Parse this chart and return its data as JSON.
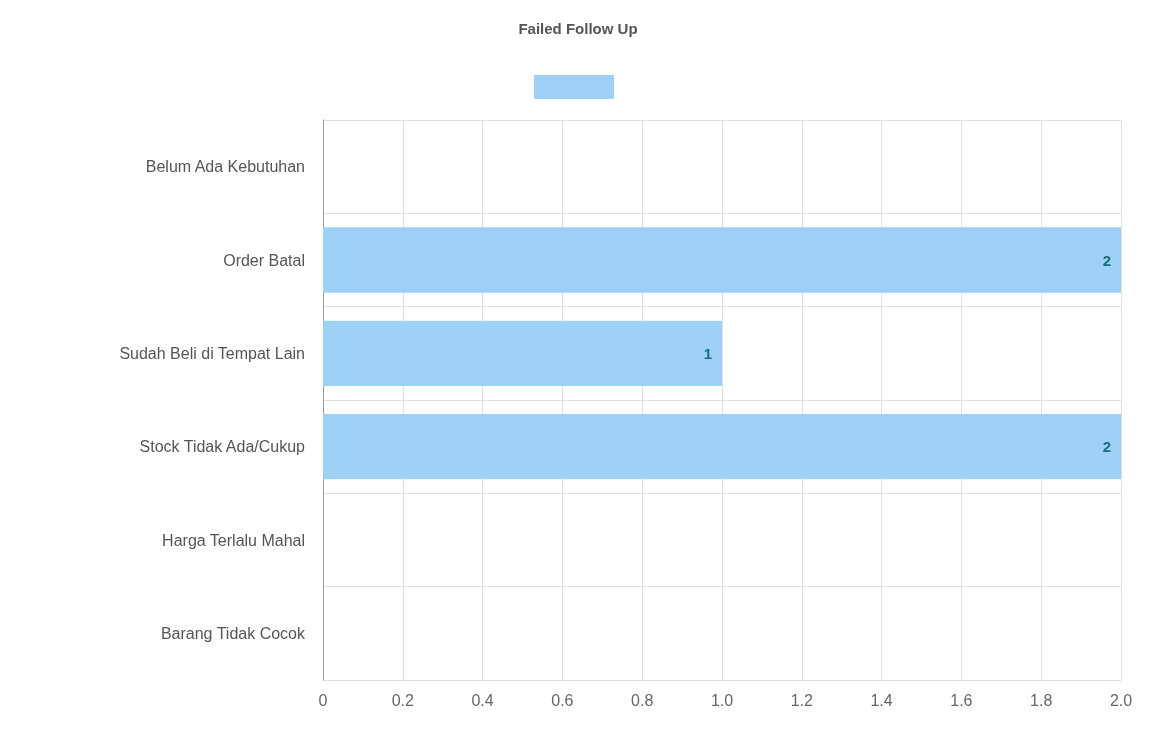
{
  "chart_data": {
    "type": "bar",
    "orientation": "horizontal",
    "title": "Failed Follow Up",
    "categories": [
      "Belum Ada Kebutuhan",
      "Order Batal",
      "Sudah Beli di Tempat Lain",
      "Stock Tidak Ada/Cukup",
      "Harga Terlalu Mahal",
      "Barang Tidak Cocok"
    ],
    "series": [
      {
        "color": "#9fd0f5",
        "values": [
          0,
          2,
          1,
          2,
          0,
          0
        ],
        "value_labels": [
          null,
          "2",
          "1",
          "2",
          null,
          null
        ]
      }
    ],
    "xlim": [
      0,
      2
    ],
    "xticks": [
      0,
      0.2,
      0.4,
      0.6,
      0.8,
      {
        "value": 1,
        "label": "1.0"
      },
      1.2,
      1.4,
      1.6,
      1.8,
      {
        "value": 2,
        "label": "2.0"
      }
    ],
    "grid": true
  }
}
